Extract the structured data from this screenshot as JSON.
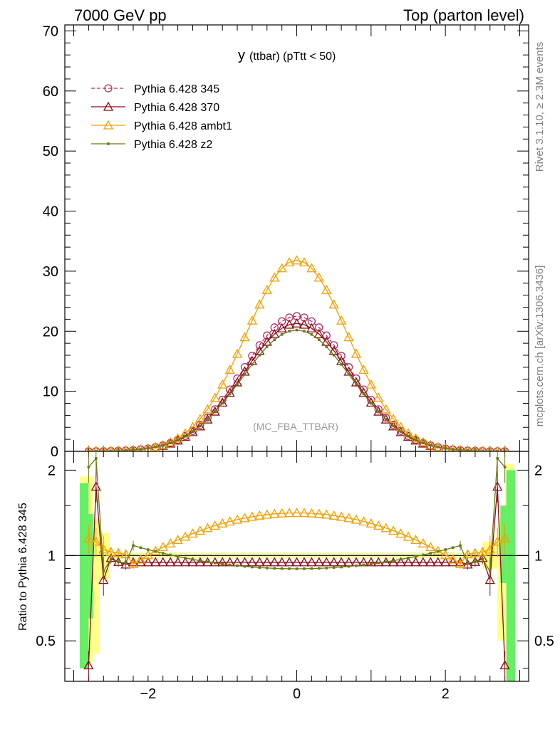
{
  "header": {
    "left": "7000 GeV pp",
    "right": "Top (parton level)"
  },
  "side": {
    "top": "Rivet 3.1.10, ≥ 2.3M events",
    "bottom": "mcplots.cern.ch [arXiv:1306.3436]"
  },
  "chart_data": [
    {
      "type": "line",
      "title": "y (ttbar) (pTtt < 50)",
      "title_main": "y",
      "title_sub": "(ttbar) (pTtt < 50)",
      "watermark": "(MC_FBA_TTBAR)",
      "xlim": [
        -3.12,
        3.12
      ],
      "ylim": [
        0,
        71
      ],
      "x_ticks": [
        -2,
        0,
        2
      ],
      "y_ticks": [
        0,
        10,
        20,
        30,
        40,
        50,
        60,
        70
      ],
      "legend": [
        {
          "name": "Pythia 6.428 345",
          "color": "#b03060",
          "marker": "circle-open",
          "dash": "dashed"
        },
        {
          "name": "Pythia 6.428 370",
          "color": "#8b0a1a",
          "marker": "triangle-open",
          "dash": "solid"
        },
        {
          "name": "Pythia 6.428 ambt1",
          "color": "#f0a000",
          "marker": "triangle-open",
          "dash": "solid"
        },
        {
          "name": "Pythia 6.428 z2",
          "color": "#6b7a10",
          "marker": "dot",
          "dash": "solid"
        }
      ],
      "series": [
        {
          "name": "Pythia 6.428 345",
          "model": {
            "peak": 22.5,
            "sigma": 0.72
          }
        },
        {
          "name": "Pythia 6.428 370",
          "model": {
            "peak": 21.3,
            "sigma": 0.72
          }
        },
        {
          "name": "Pythia 6.428 ambt1",
          "model": {
            "peak": 31.8,
            "sigma": 0.69
          }
        },
        {
          "name": "Pythia 6.428 z2",
          "model": {
            "peak": 20.2,
            "sigma": 0.735
          }
        }
      ],
      "x_bins": {
        "min": -2.8,
        "max": 2.8,
        "step": 0.1
      }
    },
    {
      "type": "line",
      "ylabel": "Ratio to Pythia 6.428 345",
      "xlim": [
        -3.12,
        3.12
      ],
      "ylim": [
        0.36,
        2.33
      ],
      "y_ticks": [
        0.5,
        1,
        2
      ],
      "y_tick_labels": [
        "0.5",
        "1",
        "2"
      ],
      "reference_line": 1,
      "series": [
        {
          "name": "Pythia 6.428 370",
          "edge_values": [
            0.41,
            1.75,
            0.82,
            0.98,
            0.95,
            0.93
          ],
          "central": 0.96
        },
        {
          "name": "Pythia 6.428 ambt1",
          "edge_values": [
            1.15,
            1.12,
            1.05,
            1.03,
            1.02,
            1.01
          ],
          "peak": 1.46
        },
        {
          "name": "Pythia 6.428 z2",
          "edge_values": [
            2.05,
            2.2,
            0.88,
            0.97,
            0.95,
            0.94
          ],
          "central": 0.91
        }
      ]
    }
  ]
}
